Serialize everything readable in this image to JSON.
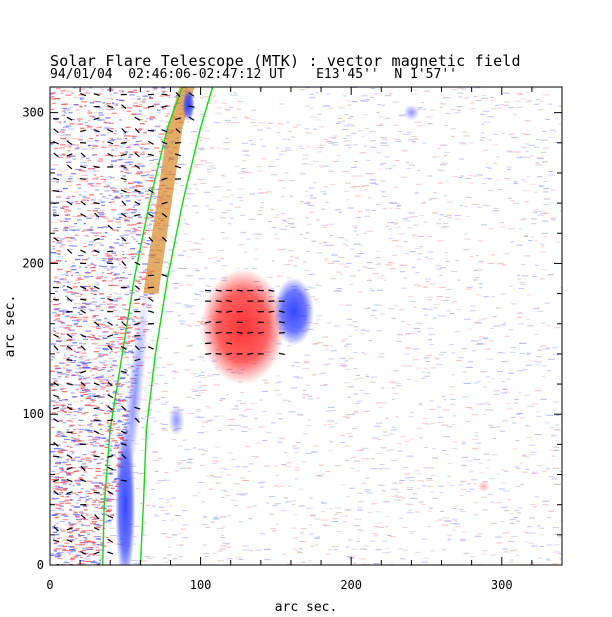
{
  "chart_data": {
    "type": "image",
    "title": "Solar Flare Telescope (MTK) : vector magnetic field",
    "subtitle": "94/01/04  02:46:06-02:47:12 UT    E13'45''  N 1'57''",
    "xlabel": "arc sec.",
    "ylabel": "arc sec.",
    "xlim": [
      0,
      340
    ],
    "ylim": [
      0,
      317
    ],
    "xticks": [
      0,
      100,
      200,
      300
    ],
    "yticks": [
      0,
      100,
      200,
      300
    ],
    "colors": {
      "positive": "#ff2a2a",
      "negative": "#2a3cff",
      "contour": "#19d619",
      "vector": "#000000",
      "limb_band": "#d8892a"
    },
    "features": [
      {
        "name": "positive-spot",
        "polarity": "positive",
        "x": 128,
        "y": 158
      },
      {
        "name": "negative-spot",
        "polarity": "negative",
        "x": 162,
        "y": 168
      },
      {
        "name": "limb-negative-south",
        "polarity": "negative",
        "x": 50,
        "y": 40
      },
      {
        "name": "negative-plage",
        "polarity": "negative",
        "x": 84,
        "y": 96
      }
    ],
    "contours": [
      {
        "name": "inner-limb",
        "points": [
          [
            35,
            0
          ],
          [
            36,
            40
          ],
          [
            40,
            90
          ],
          [
            48,
            140
          ],
          [
            56,
            190
          ],
          [
            66,
            240
          ],
          [
            78,
            290
          ],
          [
            88,
            317
          ]
        ]
      },
      {
        "name": "outer-limb",
        "points": [
          [
            60,
            0
          ],
          [
            62,
            40
          ],
          [
            64,
            90
          ],
          [
            70,
            140
          ],
          [
            78,
            190
          ],
          [
            88,
            240
          ],
          [
            100,
            290
          ],
          [
            108,
            317
          ]
        ]
      }
    ]
  }
}
